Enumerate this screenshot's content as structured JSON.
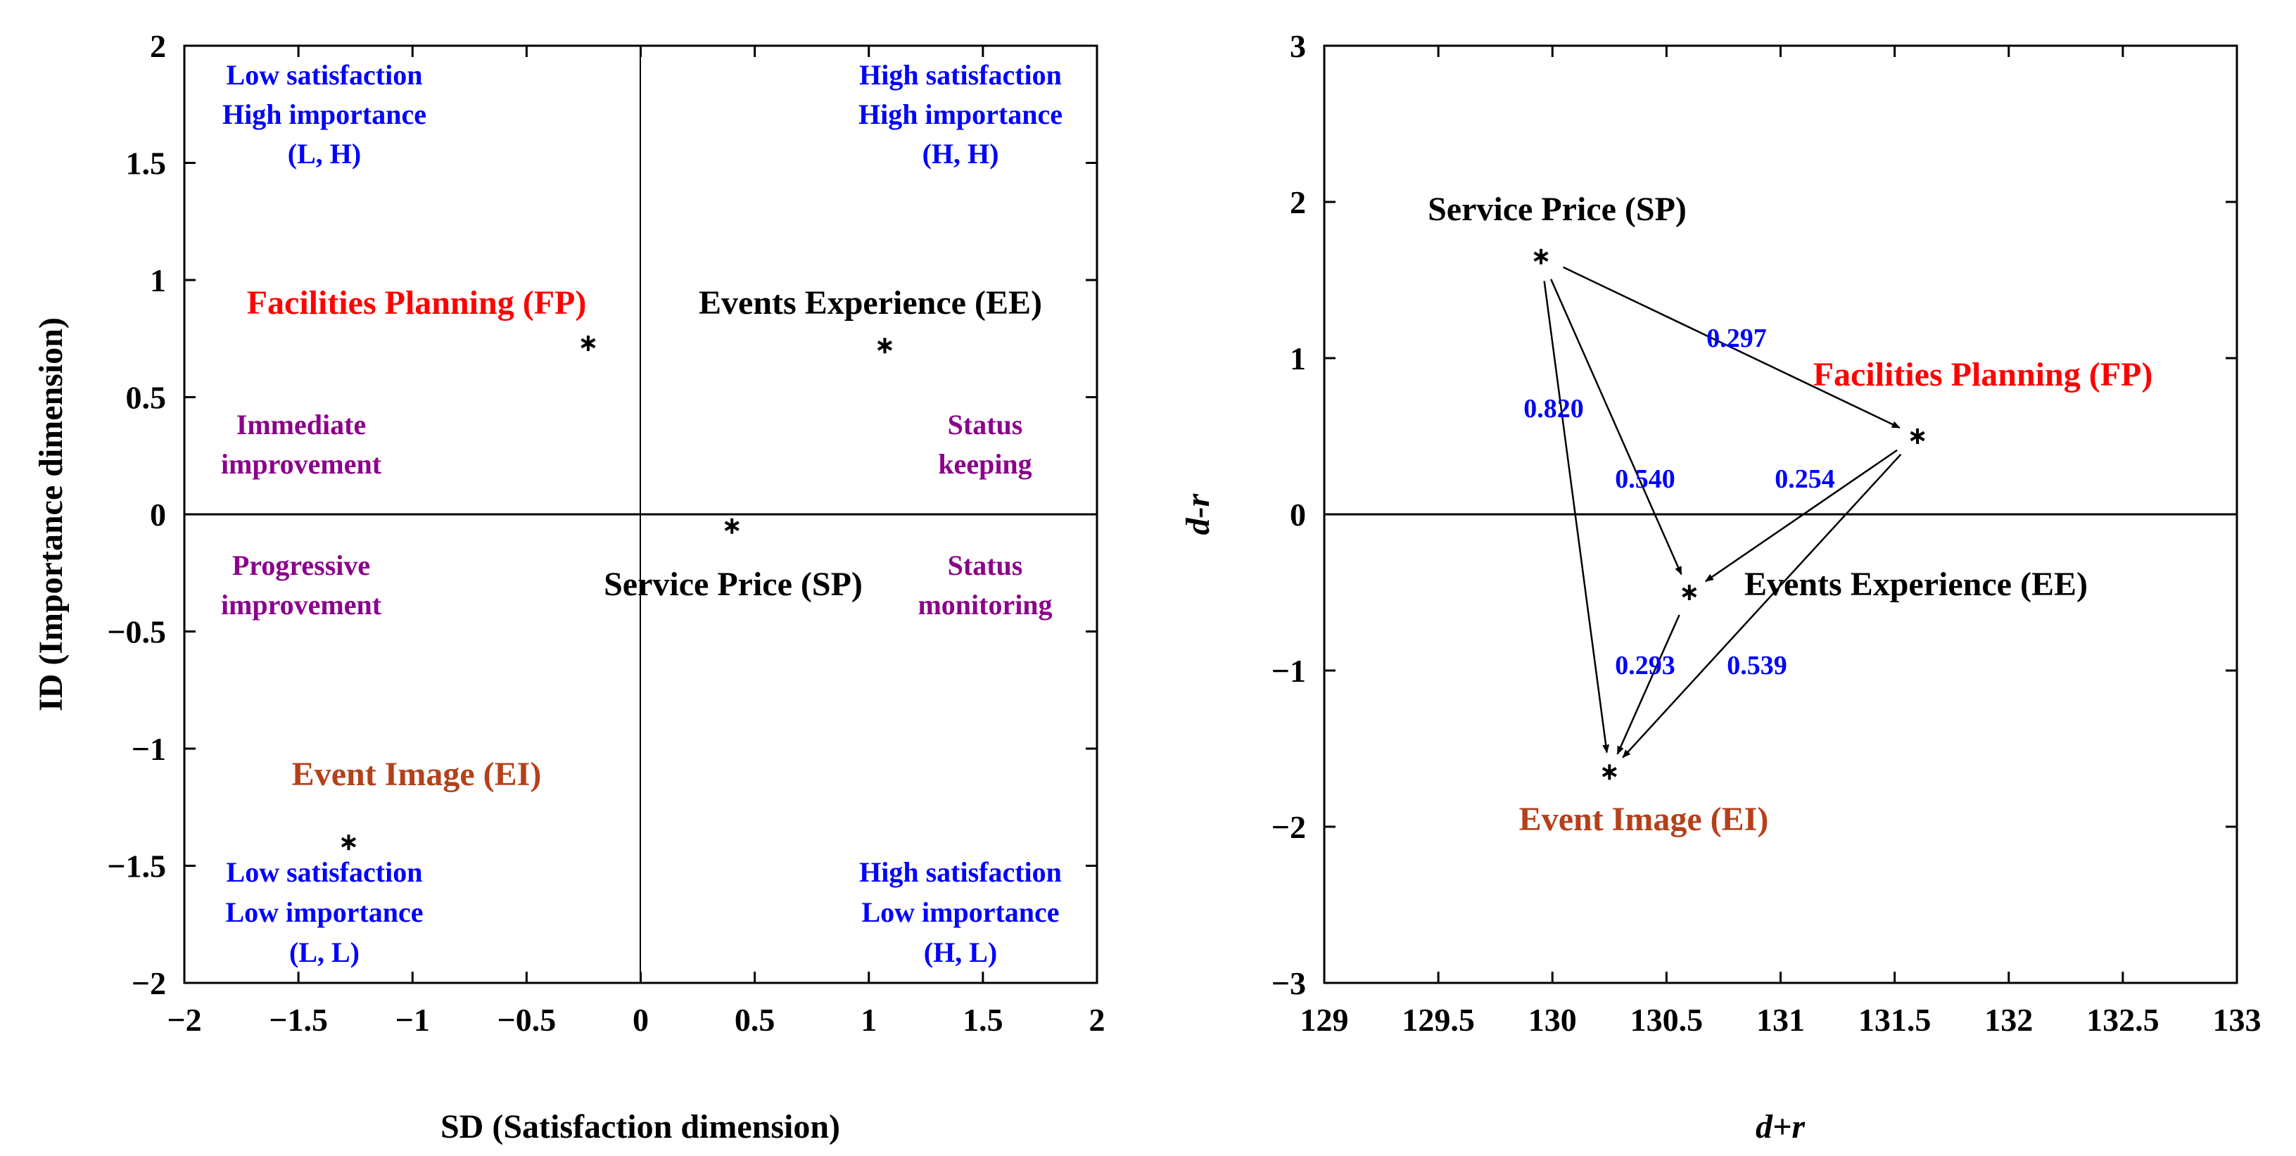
{
  "chart_data": [
    {
      "type": "scatter",
      "title": "",
      "xlabel": "SD (Satisfaction dimension)",
      "ylabel": "ID (Importance dimension)",
      "xlim": [
        -2,
        2
      ],
      "ylim": [
        -2,
        2
      ],
      "xticks": [
        "−2",
        "−1.5",
        "−1",
        "−0.5",
        "0",
        "0.5",
        "1",
        "1.5",
        "2"
      ],
      "yticks": [
        "2",
        "1.5",
        "1",
        "0.5",
        "0",
        "−0.5",
        "−1",
        "−1.5",
        "−2"
      ],
      "points": [
        {
          "label": "Facilities Planning (FP)",
          "x": -0.23,
          "y": 0.73,
          "color": "#ff0000"
        },
        {
          "label": "Events Experience (EE)",
          "x": 1.07,
          "y": 0.72,
          "color": "#000000"
        },
        {
          "label": "Service Price (SP)",
          "x": 0.4,
          "y": -0.05,
          "color": "#000000"
        },
        {
          "label": "Event Image (EI)",
          "x": -1.28,
          "y": -1.4,
          "color": "#b5401a"
        }
      ],
      "quadrants": {
        "top_left": [
          "Low satisfaction",
          "High importance",
          "(L, H)"
        ],
        "top_right": [
          "High satisfaction",
          "High importance",
          "(H, H)"
        ],
        "bottom_left": [
          "Low satisfaction",
          "Low importance",
          "(L, L)"
        ],
        "bottom_right": [
          "High satisfaction",
          "Low importance",
          "(H, L)"
        ]
      },
      "strategies": {
        "immediate": [
          "Immediate",
          "improvement"
        ],
        "keeping": [
          "Status",
          "keeping"
        ],
        "progressive": [
          "Progressive",
          "improvement"
        ],
        "monitoring": [
          "Status",
          "monitoring"
        ]
      },
      "colors": {
        "quadrant_text": "#0000ff",
        "strategy_text": "#8b008b"
      }
    },
    {
      "type": "scatter",
      "title": "",
      "xlabel": "d+r",
      "ylabel": "d-r",
      "xlim": [
        129,
        133
      ],
      "ylim": [
        -3,
        3
      ],
      "xticks": [
        "129",
        "129.5",
        "130",
        "130.5",
        "131",
        "131.5",
        "132",
        "132.5",
        "133"
      ],
      "yticks": [
        "3",
        "2",
        "1",
        "0",
        "−1",
        "−2",
        "−3"
      ],
      "points": [
        {
          "label": "Service Price (SP)",
          "x": 129.95,
          "y": 1.65,
          "color": "#000000"
        },
        {
          "label": "Facilities Planning (FP)",
          "x": 131.6,
          "y": 0.5,
          "color": "#ff0000"
        },
        {
          "label": "Events Experience (EE)",
          "x": 130.6,
          "y": -0.5,
          "color": "#000000"
        },
        {
          "label": "Event Image (EI)",
          "x": 130.25,
          "y": -1.65,
          "color": "#b5401a"
        }
      ],
      "arrows": [
        {
          "from": "SP",
          "to": "FP",
          "weight": "0.297"
        },
        {
          "from": "SP",
          "to": "EI",
          "weight": "0.820"
        },
        {
          "from": "SP",
          "to": "EE",
          "weight": "0.540"
        },
        {
          "from": "FP",
          "to": "EE",
          "weight": "0.254"
        },
        {
          "from": "EE",
          "to": "EI",
          "weight": "0.293"
        },
        {
          "from": "FP",
          "to": "EI",
          "weight": "0.539"
        }
      ],
      "colors": {
        "weight_text": "#0000ff"
      }
    }
  ]
}
